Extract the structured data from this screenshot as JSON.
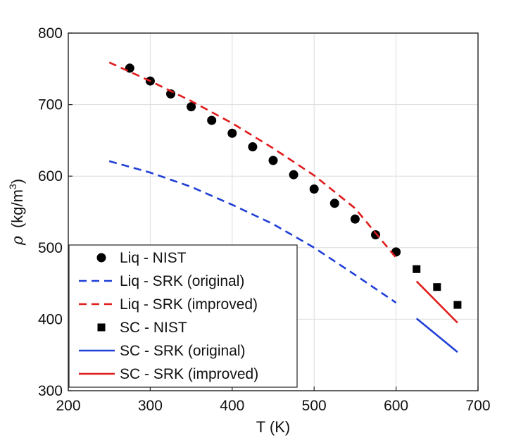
{
  "chart_data": {
    "type": "line",
    "title": "",
    "xlabel": "T (K)",
    "ylabel": {
      "symbol": "ρ",
      "unit_prefix": "(kg/m",
      "unit_exp": "3",
      "unit_suffix": ")"
    },
    "xlim": [
      200,
      700
    ],
    "ylim": [
      300,
      800
    ],
    "xticks": [
      "200",
      "300",
      "400",
      "500",
      "600",
      "700"
    ],
    "yticks": [
      "300",
      "400",
      "500",
      "600",
      "700",
      "800"
    ],
    "grid": true,
    "legend_position": "bottom-left",
    "series": [
      {
        "name": "Liq - NIST",
        "style": "marker-circle",
        "color": "#000000",
        "x": [
          275,
          300,
          325,
          350,
          375,
          400,
          425,
          450,
          475,
          500,
          525,
          550,
          575,
          600
        ],
        "y": [
          751,
          733,
          715,
          697,
          678,
          660,
          641,
          622,
          602,
          582,
          562,
          540,
          518,
          494
        ]
      },
      {
        "name": "Liq - SRK (original)",
        "style": "dashed",
        "color": "#1f3fd6",
        "x": [
          250,
          300,
          350,
          400,
          450,
          500,
          550,
          600
        ],
        "y": [
          621,
          605,
          585,
          560,
          533,
          500,
          462,
          423
        ]
      },
      {
        "name": "Liq - SRK (improved)",
        "style": "dashed",
        "color": "#e01b1b",
        "x": [
          250,
          300,
          350,
          400,
          450,
          500,
          550,
          600
        ],
        "y": [
          759,
          733,
          705,
          674,
          639,
          601,
          555,
          486
        ]
      },
      {
        "name": "SC - NIST",
        "style": "marker-square",
        "color": "#000000",
        "x": [
          625,
          650,
          675
        ],
        "y": [
          470,
          445,
          420
        ]
      },
      {
        "name": "SC - SRK (original)",
        "style": "solid",
        "color": "#1f3fd6",
        "x": [
          625,
          675
        ],
        "y": [
          401,
          354
        ]
      },
      {
        "name": "SC - SRK (improved)",
        "style": "solid",
        "color": "#e01b1b",
        "x": [
          625,
          675
        ],
        "y": [
          453,
          395
        ]
      }
    ]
  }
}
